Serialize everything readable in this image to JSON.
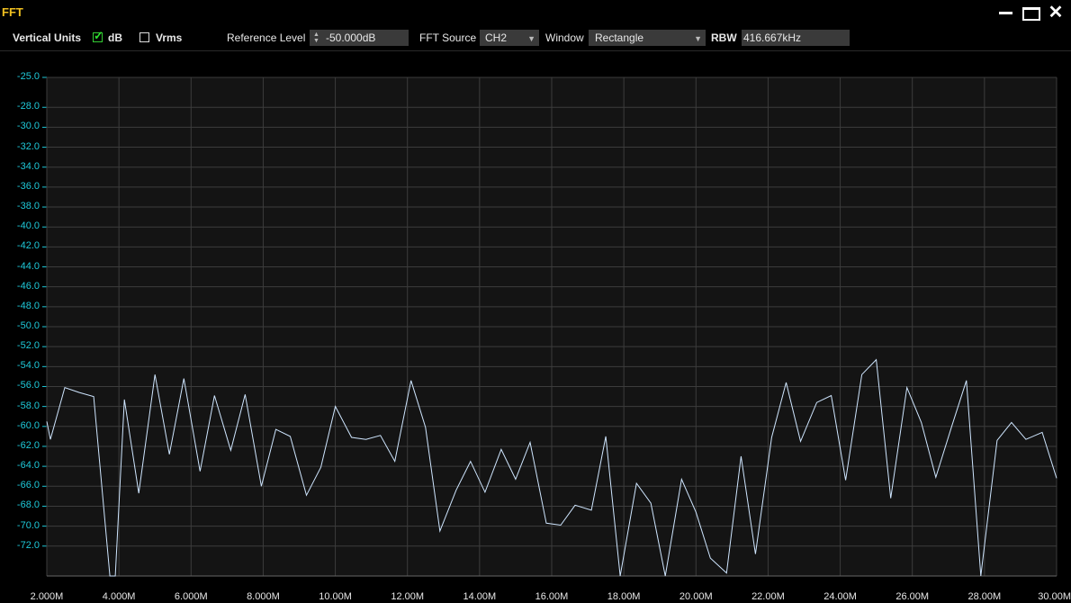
{
  "window": {
    "title": "FFT"
  },
  "toolbar": {
    "vertical_units_label": "Vertical Units",
    "db_label": "dB",
    "db_checked": true,
    "vrms_label": "Vrms",
    "vrms_checked": false,
    "reference_level_label": "Reference Level",
    "reference_level_value": "-50.000dB",
    "fft_source_label": "FFT Source",
    "fft_source_value": "CH2",
    "window_label": "Window",
    "window_value": "Rectangle",
    "rbw_label": "RBW",
    "rbw_value": "416.667kHz"
  },
  "colors": {
    "trace": "#cfe6ff",
    "ytick": "#1ec8d8",
    "title": "#f0c020",
    "grid": "#3c3c3c",
    "plot_bg": "#141414"
  },
  "chart_data": {
    "type": "line",
    "title": "",
    "xlabel": "",
    "ylabel": "",
    "grid": true,
    "xlim": [
      2.0,
      30.0
    ],
    "ylim": [
      -75.0,
      -25.0
    ],
    "x_tick_values": [
      2,
      4,
      6,
      8,
      10,
      12,
      14,
      16,
      18,
      20,
      22,
      24,
      26,
      28,
      30
    ],
    "x_tick_labels": [
      "2.000M",
      "4.000M",
      "6.000M",
      "8.000M",
      "10.00M",
      "12.00M",
      "14.00M",
      "16.00M",
      "18.00M",
      "20.00M",
      "22.00M",
      "24.00M",
      "26.00M",
      "28.00M",
      "30.00M"
    ],
    "y_tick_values": [
      -25,
      -28,
      -30,
      -32,
      -34,
      -36,
      -38,
      -40,
      -42,
      -44,
      -46,
      -48,
      -50,
      -52,
      -54,
      -56,
      -58,
      -60,
      -62,
      -64,
      -66,
      -68,
      -70,
      -72
    ],
    "y_tick_labels": [
      "-25.0",
      "-28.0",
      "-30.0",
      "-32.0",
      "-34.0",
      "-36.0",
      "-38.0",
      "-40.0",
      "-42.0",
      "-44.0",
      "-46.0",
      "-48.0",
      "-50.0",
      "-52.0",
      "-54.0",
      "-56.0",
      "-58.0",
      "-60.0",
      "-62.0",
      "-64.0",
      "-66.0",
      "-68.0",
      "-70.0",
      "-72.0"
    ],
    "series": [
      {
        "x": [
          2.0,
          2.1,
          2.5,
          2.9,
          3.3,
          3.75,
          3.9,
          4.15,
          4.55,
          5.0,
          5.4,
          5.8,
          6.25,
          6.65,
          7.1,
          7.5,
          7.95,
          8.35,
          8.75,
          9.2,
          9.6,
          10.0,
          10.45,
          10.85,
          11.25,
          11.65,
          12.1,
          12.5,
          12.9,
          13.35,
          13.75,
          14.15,
          14.6,
          15.0,
          15.4,
          15.85,
          16.25,
          16.65,
          17.1,
          17.5,
          17.9,
          18.35,
          18.75,
          19.15,
          19.6,
          20.0,
          20.4,
          20.85,
          21.25,
          21.65,
          22.1,
          22.5,
          22.9,
          23.35,
          23.75,
          24.15,
          24.6,
          25.0,
          25.4,
          25.85,
          26.25,
          26.65,
          27.1,
          27.5,
          27.9,
          28.35,
          28.75,
          29.15,
          29.6,
          30.0
        ],
        "y": [
          -59.5,
          -61.3,
          -56.1,
          -56.6,
          -57.0,
          -75.6,
          -75.6,
          -57.3,
          -66.7,
          -54.8,
          -62.8,
          -55.2,
          -64.5,
          -56.9,
          -62.4,
          -56.8,
          -66.0,
          -60.3,
          -61.0,
          -66.9,
          -64.1,
          -58.0,
          -61.1,
          -61.3,
          -60.9,
          -63.5,
          -55.4,
          -60.1,
          -70.5,
          -66.4,
          -63.5,
          -66.6,
          -62.3,
          -65.3,
          -61.6,
          -69.7,
          -69.9,
          -67.9,
          -68.4,
          -61.0,
          -76.0,
          -65.7,
          -67.7,
          -76.0,
          -65.3,
          -68.6,
          -73.2,
          -74.7,
          -63.0,
          -72.8,
          -61.1,
          -55.6,
          -61.5,
          -57.6,
          -56.9,
          -65.4,
          -54.8,
          -53.3,
          -67.2,
          -56.1,
          -59.6,
          -65.1,
          -59.9,
          -55.4,
          -76.0,
          -61.4,
          -59.6,
          -61.3,
          -60.6,
          -65.2
        ]
      }
    ]
  }
}
